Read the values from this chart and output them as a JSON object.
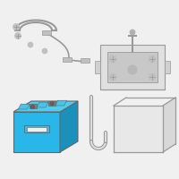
{
  "bg_color": "#f0f0f0",
  "battery_color": "#29b6e8",
  "battery_dark": "#1a90bb",
  "battery_top": "#50ccf0",
  "outline_color": "#666666",
  "light_outline": "#999999",
  "fig_width": 2.0,
  "fig_height": 2.0,
  "dpi": 100
}
